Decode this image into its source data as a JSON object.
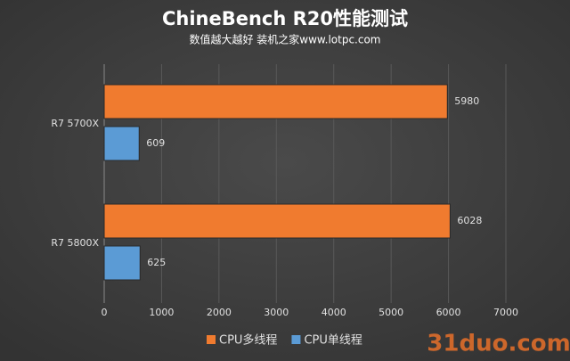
{
  "chart_data": {
    "type": "hbar",
    "title": "ChineBench R20性能测试",
    "subtitle": "数值越大越好 装机之家www.lotpc.com",
    "categories": [
      "R7 5700X",
      "R7 5800X"
    ],
    "series": [
      {
        "name": "CPU多线程",
        "color": "#f07b2f",
        "values": [
          5980,
          6028
        ]
      },
      {
        "name": "CPU单线程",
        "color": "#5b9bd5",
        "values": [
          609,
          625
        ]
      }
    ],
    "xlim": [
      0,
      7000
    ],
    "xticks": [
      0,
      1000,
      2000,
      3000,
      4000,
      5000,
      6000,
      7000
    ],
    "grid": true,
    "legend": "bottom",
    "watermark": "31duo.com"
  }
}
